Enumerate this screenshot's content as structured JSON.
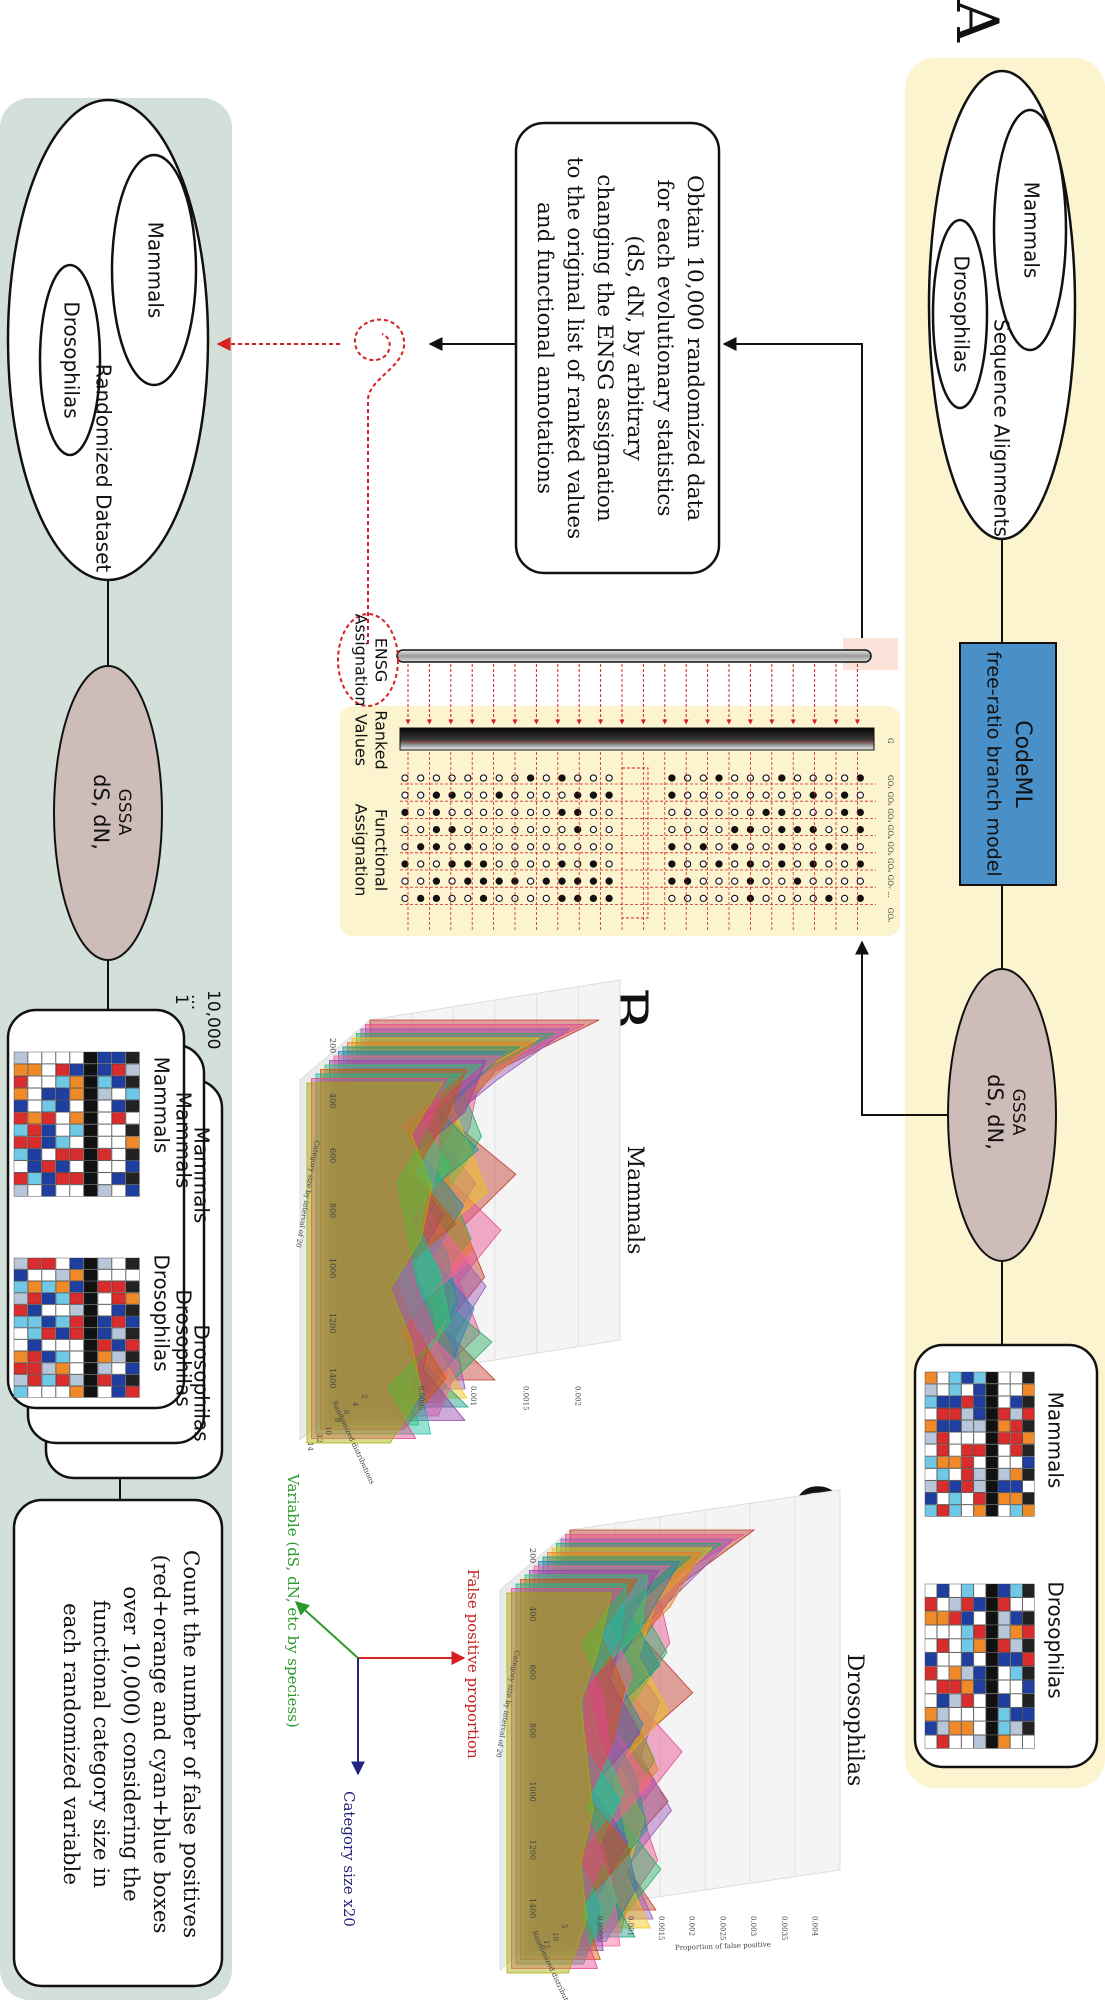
{
  "panels": {
    "a_label": "A",
    "b_label": "B",
    "c_label": "C"
  },
  "top_row": {
    "alignments_title": "Sequence Alignments",
    "mammals": "Mammals",
    "drosophilas": "Drosophilas",
    "codeml_line1": "CodeML",
    "codeml_line2": "free-ratio branch model",
    "gssa_line1": "GSSA",
    "gssa_line2": "dS, dN,",
    "result_mammals": "Mammals",
    "result_drosophilas": "Drosophilas"
  },
  "middle": {
    "obtain_lines": [
      "Obtain 10,000 randomized data",
      "for each evolutionary statistics",
      "(dS, dN,        by arbitrary",
      "changing the ENSG assignation",
      "to the original list of ranked values",
      "and functional annotations"
    ],
    "ensg_line1": "ENSG",
    "ensg_line2": "Assignation",
    "ranked_line1": "Ranked",
    "ranked_line2": "Values",
    "functional_line1": "Functional",
    "functional_line2": "Assignation",
    "go_header": [
      "G",
      "GO₁",
      "GO₂",
      "GO₃",
      "GO₄",
      "GO₅",
      "GO₆",
      "GO₇",
      "...",
      "GOₙ"
    ]
  },
  "bottom_row": {
    "randomized_title": "Randomized Dataset",
    "mammals": "Mammals",
    "drosophilas": "Drosophilas",
    "gssa_line1": "GSSA",
    "gssa_line2": "dS, dN,",
    "stack_top": "10,000",
    "stack_dots": "...",
    "stack_one": "1",
    "stack_mammals": "Mammals",
    "stack_drosophilas": "Drosophilas",
    "count_lines": [
      "Count the number of false positives",
      "(red+orange and cyan+blue boxes",
      "over 10,000) considering the",
      "functional category size in",
      "each randomized variable"
    ]
  },
  "axes_legend": {
    "false_positive": "False positive proportion",
    "category_size": "Category size x20",
    "variable": "Variable (dS, dN, etc by speciess)"
  },
  "colors": {
    "yellow_panel": "#fbf4cf",
    "green_panel": "#d3dfd9",
    "codeml_blue": "#4a90c8",
    "gssa_fill": "#cdbcb8",
    "red_dotted": "#d62020",
    "axis_red": "#d42424",
    "axis_blue": "#23237e",
    "axis_green": "#2a9a2a"
  },
  "chart_data": [
    {
      "type": "area",
      "title": "Mammals",
      "xlabel": "Category size by interval of 20",
      "ylabel": "Randomized distributions",
      "zlabel": "",
      "x_ticks": [
        200,
        400,
        600,
        800,
        1000,
        1200,
        1400
      ],
      "y_ticks": [
        2,
        4,
        6,
        8,
        10,
        12,
        14
      ],
      "z_ticks": [
        0.0005,
        0.001,
        0.0015,
        0.002
      ],
      "series_count": 15,
      "series": [
        {
          "values": [
            0.0022,
            0.0012,
            0.0008,
            0.0014,
            0.0009,
            0.0011,
            0.0007,
            0.0012
          ]
        },
        {
          "values": [
            0.0021,
            0.0011,
            0.001,
            0.0008,
            0.0013,
            0.0009,
            0.0011,
            0.0006
          ]
        },
        {
          "values": [
            0.002,
            0.0013,
            0.0007,
            0.0011,
            0.0008,
            0.0012,
            0.0009,
            0.001
          ]
        },
        {
          "values": [
            0.0019,
            0.001,
            0.0012,
            0.0009,
            0.0011,
            0.0007,
            0.0013,
            0.0008
          ]
        },
        {
          "values": [
            0.0018,
            0.0009,
            0.0011,
            0.0013,
            0.0007,
            0.001,
            0.0008,
            0.0011
          ]
        },
        {
          "values": [
            0.0018,
            0.0012,
            0.0009,
            0.001,
            0.0012,
            0.0008,
            0.001,
            0.0009
          ]
        },
        {
          "values": [
            0.0017,
            0.0008,
            0.0013,
            0.0007,
            0.001,
            0.0011,
            0.0007,
            0.0012
          ]
        },
        {
          "values": [
            0.0016,
            0.0011,
            0.0008,
            0.0012,
            0.0009,
            0.0013,
            0.0011,
            0.0007
          ]
        },
        {
          "values": [
            0.0016,
            0.001,
            0.001,
            0.0009,
            0.0013,
            0.0007,
            0.0012,
            0.001
          ]
        },
        {
          "values": [
            0.0015,
            0.0013,
            0.0007,
            0.0011,
            0.0008,
            0.001,
            0.0009,
            0.0013
          ]
        },
        {
          "values": [
            0.0015,
            0.0009,
            0.0012,
            0.0008,
            0.0011,
            0.0012,
            0.0008,
            0.0009
          ]
        },
        {
          "values": [
            0.0014,
            0.0012,
            0.0009,
            0.0013,
            0.0007,
            0.0009,
            0.0012,
            0.0008
          ]
        },
        {
          "values": [
            0.0014,
            0.0008,
            0.0011,
            0.001,
            0.0012,
            0.0008,
            0.001,
            0.0011
          ]
        },
        {
          "values": [
            0.0013,
            0.0011,
            0.0008,
            0.0009,
            0.001,
            0.0012,
            0.0007,
            0.001
          ]
        },
        {
          "values": [
            0.0013,
            0.001,
            0.0012,
            0.0011,
            0.0008,
            0.001,
            0.0011,
            0.0008
          ]
        }
      ]
    },
    {
      "type": "area",
      "title": "Drosophilas",
      "xlabel": "Category size by interval of 20",
      "ylabel": "Randomized distributions",
      "zlabel": "Proportion of false positive",
      "x_ticks": [
        200,
        400,
        600,
        800,
        1000,
        1200,
        1400
      ],
      "y_ticks": [
        5,
        10,
        15
      ],
      "z_ticks": [
        0.0005,
        0.001,
        0.0015,
        0.002,
        0.0025,
        0.003,
        0.0035,
        0.004
      ],
      "series_count": 15,
      "series": [
        {
          "values": [
            0.003,
            0.0018,
            0.0012,
            0.002,
            0.001,
            0.0016,
            0.0008,
            0.0014
          ]
        },
        {
          "values": [
            0.0029,
            0.0015,
            0.0017,
            0.0011,
            0.0019,
            0.0012,
            0.0015,
            0.0009
          ]
        },
        {
          "values": [
            0.0028,
            0.0019,
            0.001,
            0.0016,
            0.0013,
            0.0018,
            0.0011,
            0.0015
          ]
        },
        {
          "values": [
            0.0027,
            0.0013,
            0.0018,
            0.0012,
            0.0016,
            0.001,
            0.0017,
            0.001
          ]
        },
        {
          "values": [
            0.0026,
            0.0017,
            0.0014,
            0.0019,
            0.0011,
            0.0015,
            0.0012,
            0.0016
          ]
        },
        {
          "values": [
            0.0025,
            0.002,
            0.0011,
            0.0014,
            0.0018,
            0.0011,
            0.0014,
            0.0012
          ]
        },
        {
          "values": [
            0.0024,
            0.0014,
            0.0019,
            0.001,
            0.0015,
            0.0017,
            0.001,
            0.0015
          ]
        },
        {
          "values": [
            0.0023,
            0.0018,
            0.0012,
            0.0017,
            0.0012,
            0.0014,
            0.0016,
            0.0011
          ]
        },
        {
          "values": [
            0.0022,
            0.0012,
            0.0016,
            0.0013,
            0.0019,
            0.0011,
            0.0013,
            0.0014
          ]
        },
        {
          "values": [
            0.0021,
            0.0016,
            0.0013,
            0.0018,
            0.001,
            0.0016,
            0.0011,
            0.0012
          ]
        },
        {
          "values": [
            0.002,
            0.0019,
            0.001,
            0.0012,
            0.0016,
            0.0012,
            0.0015,
            0.001
          ]
        },
        {
          "values": [
            0.0019,
            0.0013,
            0.0017,
            0.0015,
            0.0011,
            0.0018,
            0.001,
            0.0013
          ]
        },
        {
          "values": [
            0.0018,
            0.0017,
            0.0011,
            0.0011,
            0.0017,
            0.001,
            0.0014,
            0.0011
          ]
        },
        {
          "values": [
            0.0018,
            0.0011,
            0.0015,
            0.0016,
            0.0012,
            0.0015,
            0.0011,
            0.0014
          ]
        },
        {
          "values": [
            0.0017,
            0.0015,
            0.0012,
            0.0013,
            0.0014,
            0.0012,
            0.0013,
            0.001
          ]
        }
      ]
    }
  ]
}
